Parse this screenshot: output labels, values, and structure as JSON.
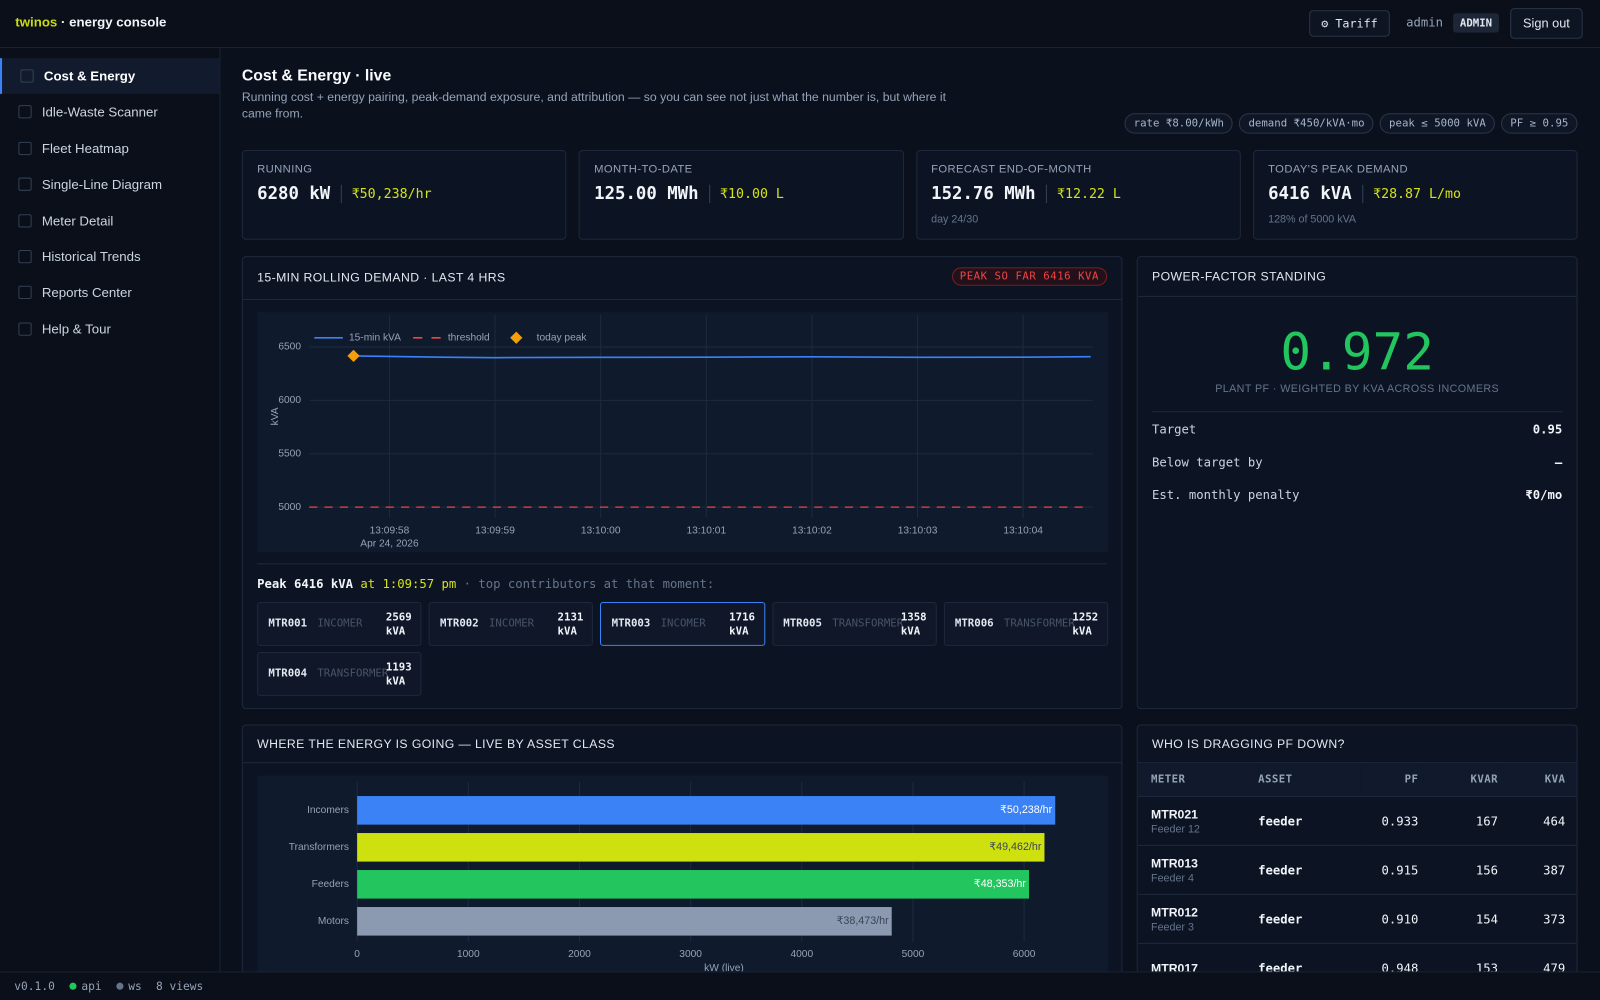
{
  "header": {
    "brand": "twinos",
    "brand_suffix": "· energy console",
    "tariff_button": "⚙ Tariff",
    "user": "admin",
    "role": "ADMIN",
    "sign_out": "Sign out"
  },
  "sidebar": {
    "items": [
      "Cost & Energy",
      "Idle-Waste Scanner",
      "Fleet Heatmap",
      "Single-Line Diagram",
      "Meter Detail",
      "Historical Trends",
      "Reports Center",
      "Help & Tour"
    ],
    "active": 0
  },
  "page": {
    "title": "Cost & Energy · live",
    "subtitle": "Running cost + energy pairing, peak-demand exposure, and attribution — so you can see not just what the number is, but where it came from.",
    "chips": [
      "rate ₹8.00/kWh",
      "demand ₹450/kVA·mo",
      "peak ≤ 5000 kVA",
      "PF ≥ 0.95"
    ]
  },
  "kpis": [
    {
      "label": "RUNNING",
      "value": "6280 kW",
      "cost": "₹50,238/hr"
    },
    {
      "label": "MONTH-TO-DATE",
      "value": "125.00 MWh",
      "cost": "₹10.00 L"
    },
    {
      "label": "FORECAST END-OF-MONTH",
      "value": "152.76 MWh",
      "cost": "₹12.22 L",
      "note": "day 24/30"
    },
    {
      "label": "TODAY'S PEAK DEMAND",
      "value": "6416 kVA",
      "cost": "₹28.87 L/mo",
      "note": "128% of 5000 kVA"
    }
  ],
  "demand_panel": {
    "title": "15-MIN ROLLING DEMAND · LAST 4 HRS",
    "badge": "PEAK SO FAR 6416 KVA",
    "chart": {
      "type": "line",
      "ylabel": "kVA",
      "xlim": [
        "13:09:57.24",
        "13:10:04.66"
      ],
      "xticks": [
        "13:09:58",
        "13:09:59",
        "13:10:00",
        "13:10:01",
        "13:10:02",
        "13:10:03",
        "13:10:04"
      ],
      "xdate": "Apr 24, 2026",
      "ylim": [
        4900,
        6800
      ],
      "yticks": [
        5000,
        5500,
        6000,
        6500
      ],
      "grid": true,
      "legend": "top-left",
      "series": [
        {
          "name": "15-min kVA",
          "color": "#3b82f6",
          "style": "solid",
          "x": [
            "13:09:57.66",
            "13:09:58.5",
            "13:09:59",
            "13:10:00",
            "13:10:01",
            "13:10:02",
            "13:10:03",
            "13:10:04",
            "13:10:04.64"
          ],
          "values": [
            6416,
            6405,
            6400,
            6403,
            6405,
            6407,
            6403,
            6405,
            6408
          ]
        },
        {
          "name": "threshold",
          "color": "#ef4444",
          "style": "dashed",
          "x": [
            "13:09:57.24",
            "13:10:04.6"
          ],
          "values": [
            5000,
            5000
          ]
        },
        {
          "name": "today peak",
          "color": "#f59e0b",
          "style": "diamond",
          "x": [
            "13:09:57.66"
          ],
          "values": [
            6416
          ]
        }
      ]
    },
    "peak": {
      "label": "Peak",
      "value": "6416 kVA",
      "at": "at",
      "time": "1:09:57 pm",
      "suffix": "· top contributors at that moment:"
    },
    "contributors": [
      {
        "meter": "MTR001",
        "class": "INCOMER",
        "kva": 2569,
        "unit": "kVA"
      },
      {
        "meter": "MTR002",
        "class": "INCOMER",
        "kva": 2131,
        "unit": "kVA"
      },
      {
        "meter": "MTR003",
        "class": "INCOMER",
        "kva": 1716,
        "unit": "kVA"
      },
      {
        "meter": "MTR005",
        "class": "TRANSFORMER",
        "kva": 1358,
        "unit": "kVA"
      },
      {
        "meter": "MTR006",
        "class": "TRANSFORMER",
        "kva": 1252,
        "unit": "kVA"
      },
      {
        "meter": "MTR004",
        "class": "TRANSFORMER",
        "kva": 1193,
        "unit": "kVA"
      }
    ],
    "selected": 2
  },
  "pf_panel": {
    "title": "POWER-FACTOR STANDING",
    "value": "0.972",
    "caption": "PLANT PF · WEIGHTED BY KVA ACROSS INCOMERS",
    "rows": [
      [
        "Target",
        "0.95"
      ],
      [
        "Below target by",
        "—"
      ],
      [
        "Est. monthly penalty",
        "₹0/mo"
      ]
    ]
  },
  "energy_panel": {
    "title": "WHERE THE ENERGY IS GOING — LIVE BY ASSET CLASS",
    "chart": {
      "type": "hbar",
      "categories": [
        "Incomers",
        "Transformers",
        "Feeders",
        "Motors"
      ],
      "values": [
        6280,
        6183,
        6044,
        4809
      ],
      "value_labels": [
        "₹50,238/hr",
        "₹49,462/hr",
        "₹48,353/hr",
        "₹38,473/hr"
      ],
      "colors": [
        "#3b82f6",
        "#cfe00f",
        "#22c55e",
        "#8b9ab0"
      ],
      "xlim": [
        0,
        6600
      ],
      "xticks": [
        0,
        1000,
        2000,
        3000,
        4000,
        5000,
        6000
      ],
      "xlabel": "kW (live)",
      "grid": true
    }
  },
  "pf_table": {
    "title": "WHO IS DRAGGING PF DOWN?",
    "columns": [
      "METER",
      "ASSET",
      "PF",
      "KVAR",
      "KVA"
    ],
    "rows": [
      {
        "meter": "MTR021",
        "sub": "Feeder 12",
        "asset": "feeder",
        "pf": "0.933",
        "kvar": 167,
        "kva": 464
      },
      {
        "meter": "MTR013",
        "sub": "Feeder 4",
        "asset": "feeder",
        "pf": "0.915",
        "kvar": 156,
        "kva": 387
      },
      {
        "meter": "MTR012",
        "sub": "Feeder 3",
        "asset": "feeder",
        "pf": "0.910",
        "kvar": 154,
        "kva": 373
      },
      {
        "meter": "MTR017",
        "asset": "feeder",
        "pf": "0.948",
        "kvar": 153,
        "kva": 479
      }
    ]
  },
  "footer": {
    "version": "v0.1.0",
    "status": [
      {
        "label": "api",
        "color": "#22c55e"
      },
      {
        "label": "ws",
        "color": "#64748b"
      }
    ],
    "views": "8 views"
  }
}
